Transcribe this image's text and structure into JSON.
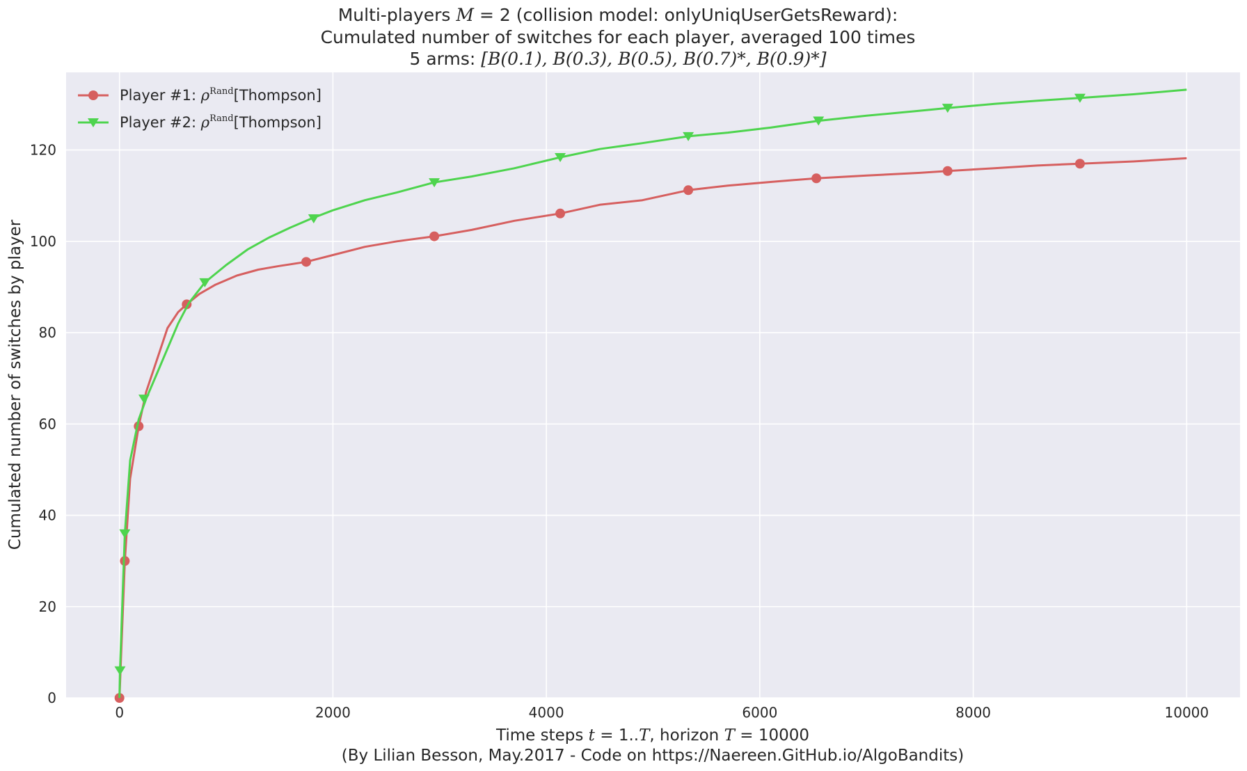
{
  "chart_data": {
    "type": "line",
    "title_lines": [
      "Multi-players M = 2 (collision model: onlyUniqUserGetsReward):",
      "Cumulated number of switches for each player, averaged 100 times",
      "5 arms: [B(0.1), B(0.3), B(0.5), B(0.7)*, B(0.9)*]"
    ],
    "xlabel": "Time steps t = 1..T, horizon T = 10000",
    "caption": "(By Lilian Besson, May.2017 - Code on https://Naereen.GitHub.io/AlgoBandits)",
    "ylabel": "Cumulated number of switches by player",
    "xlim": [
      -500,
      10500
    ],
    "ylim": [
      0,
      137
    ],
    "xticks": [
      0,
      2000,
      4000,
      6000,
      8000,
      10000
    ],
    "xtick_labels": [
      "0",
      "2000",
      "4000",
      "6000",
      "8000",
      "10000"
    ],
    "yticks": [
      0,
      20,
      40,
      60,
      80,
      100,
      120
    ],
    "ytick_labels": [
      "0",
      "20",
      "40",
      "60",
      "80",
      "100",
      "120"
    ],
    "grid": true,
    "legend_position": "top-left",
    "background": "#eaeaf2",
    "series": [
      {
        "name": "Player #1: ρRand[Thompson]",
        "color": "#d65f5f",
        "marker": "circle",
        "x": [
          0,
          20,
          50,
          100,
          180,
          250,
          350,
          450,
          550,
          630,
          750,
          900,
          1100,
          1300,
          1500,
          1750,
          2000,
          2300,
          2600,
          2950,
          3300,
          3700,
          4130,
          4500,
          4900,
          5330,
          5700,
          6100,
          6530,
          7000,
          7500,
          7760,
          8200,
          8600,
          9000,
          9500,
          10000
        ],
        "y": [
          0,
          12,
          30,
          48,
          59.5,
          67,
          74,
          81,
          84.5,
          86.2,
          88.5,
          90.5,
          92.5,
          93.8,
          94.6,
          95.5,
          97,
          98.8,
          100,
          101.1,
          102.5,
          104.5,
          106.1,
          108,
          109,
          111.2,
          112.2,
          113,
          113.8,
          114.4,
          115,
          115.4,
          116,
          116.6,
          117,
          117.5,
          118.2
        ],
        "markers_x": [
          0,
          50,
          180,
          630,
          1750,
          2950,
          4130,
          5330,
          6530,
          7760,
          9000
        ],
        "markers_y": [
          0,
          30,
          59.5,
          86.2,
          95.5,
          101.1,
          106.1,
          111.2,
          113.8,
          115.4,
          117
        ]
      },
      {
        "name": "Player #2: ρRand[Thompson]",
        "color": "#4ed44e",
        "marker": "triangle-down",
        "x": [
          0,
          5,
          50,
          100,
          180,
          250,
          350,
          450,
          550,
          650,
          800,
          1000,
          1200,
          1400,
          1600,
          1800,
          2000,
          2300,
          2600,
          2950,
          3300,
          3700,
          4130,
          4500,
          4900,
          5330,
          5700,
          6100,
          6550,
          7000,
          7500,
          7760,
          8200,
          8600,
          9000,
          9500,
          10000
        ],
        "y": [
          0,
          6,
          36,
          52,
          61,
          65.5,
          71,
          76.5,
          82,
          86.5,
          91,
          94.8,
          98.2,
          100.8,
          103,
          105,
          106.8,
          109,
          110.7,
          112.9,
          114.2,
          116,
          118.4,
          120.2,
          121.5,
          123,
          123.8,
          124.9,
          126.4,
          127.5,
          128.6,
          129.2,
          130.1,
          130.8,
          131.4,
          132.2,
          133.2
        ],
        "markers_x": [
          5,
          50,
          230,
          800,
          1820,
          2950,
          4130,
          5330,
          6550,
          7760,
          9000
        ],
        "markers_y": [
          6,
          36,
          65.5,
          91,
          105,
          112.9,
          118.4,
          123,
          126.4,
          129.2,
          131.4
        ]
      }
    ]
  }
}
